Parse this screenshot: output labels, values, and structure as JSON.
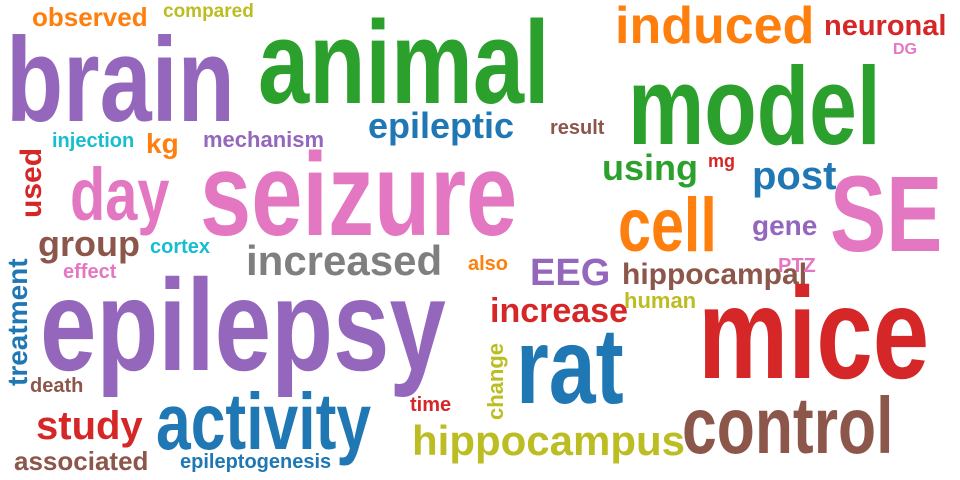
{
  "palette": {
    "green": "#2ca02c",
    "purple": "#9467bd",
    "orange": "#ff7f0e",
    "red": "#d62728",
    "pink": "#e377c2",
    "blue": "#1f77b4",
    "brown": "#8c564b",
    "gray": "#7f7f7f",
    "olive": "#bcbd22",
    "cyan": "#17becf"
  },
  "words": {
    "observed": "observed",
    "compared": "compared",
    "induced": "induced",
    "neuronal": "neuronal",
    "brain": "brain",
    "animal": "animal",
    "model": "model",
    "dg": "DG",
    "epileptic": "epileptic",
    "result": "result",
    "injection": "injection",
    "kg": "kg",
    "mechanism": "mechanism",
    "used": "used",
    "seizure": "seizure",
    "day": "day",
    "using": "using",
    "mg": "mg",
    "post": "post",
    "se": "SE",
    "cell": "cell",
    "gene": "gene",
    "group": "group",
    "cortex": "cortex",
    "increased": "increased",
    "treatment": "treatment",
    "effect": "effect",
    "also": "also",
    "eeg": "EEG",
    "hippocampal": "hippocampal",
    "ptz": "PTZ",
    "human": "human",
    "epilepsy": "epilepsy",
    "increase": "increase",
    "mice": "mice",
    "rat": "rat",
    "change": "change",
    "death": "death",
    "time": "time",
    "study": "study",
    "activity": "activity",
    "control": "control",
    "hippocampus": "hippocampus",
    "associated": "associated",
    "epileptogenesis": "epileptogenesis"
  }
}
